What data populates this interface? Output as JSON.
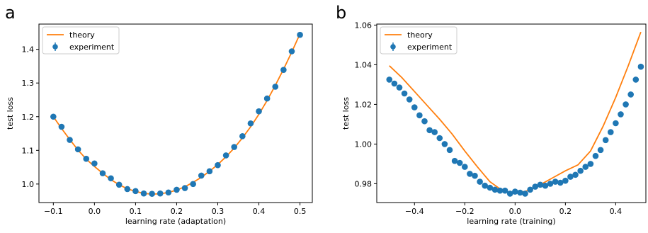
{
  "colors": {
    "theory": "#ff7f0e",
    "experiment": "#1f77b4",
    "axis": "#000000"
  },
  "chart_data": [
    {
      "panel_label": "a",
      "type": "line+scatter",
      "xlabel": "learning rate (adaptation)",
      "ylabel": "test loss",
      "xlim": [
        -0.135,
        0.53
      ],
      "ylim": [
        0.945,
        1.475
      ],
      "xticks": [
        -0.1,
        0.0,
        0.1,
        0.2,
        0.3,
        0.4,
        0.5
      ],
      "xtick_labels": [
        "−0.1",
        "0.0",
        "0.1",
        "0.2",
        "0.3",
        "0.4",
        "0.5"
      ],
      "yticks": [
        1.0,
        1.1,
        1.2,
        1.3,
        1.4
      ],
      "ytick_labels": [
        "1.0",
        "1.1",
        "1.2",
        "1.3",
        "1.4"
      ],
      "legend": {
        "placement": "top-left",
        "entries": [
          "theory",
          "experiment"
        ]
      },
      "series": [
        {
          "name": "theory",
          "kind": "line",
          "x": [
            -0.1,
            -0.08,
            -0.06,
            -0.04,
            -0.02,
            0.0,
            0.02,
            0.04,
            0.06,
            0.08,
            0.1,
            0.12,
            0.14,
            0.16,
            0.18,
            0.2,
            0.22,
            0.24,
            0.26,
            0.28,
            0.3,
            0.32,
            0.34,
            0.36,
            0.38,
            0.4,
            0.42,
            0.44,
            0.46,
            0.48,
            0.5
          ],
          "y": [
            1.2,
            1.165,
            1.132,
            1.101,
            1.074,
            1.052,
            1.032,
            1.013,
            0.998,
            0.986,
            0.978,
            0.972,
            0.97,
            0.971,
            0.975,
            0.982,
            0.992,
            1.005,
            1.02,
            1.038,
            1.058,
            1.081,
            1.107,
            1.137,
            1.17,
            1.207,
            1.248,
            1.293,
            1.341,
            1.392,
            1.446
          ]
        },
        {
          "name": "experiment",
          "kind": "scatter",
          "x": [
            -0.1,
            -0.08,
            -0.06,
            -0.04,
            -0.02,
            0.0,
            0.02,
            0.04,
            0.06,
            0.08,
            0.1,
            0.12,
            0.14,
            0.16,
            0.18,
            0.2,
            0.22,
            0.24,
            0.26,
            0.28,
            0.3,
            0.32,
            0.34,
            0.36,
            0.38,
            0.4,
            0.42,
            0.44,
            0.46,
            0.48,
            0.5
          ],
          "y": [
            1.2,
            1.17,
            1.131,
            1.103,
            1.075,
            1.061,
            1.032,
            1.017,
            0.998,
            0.985,
            0.979,
            0.972,
            0.971,
            0.972,
            0.975,
            0.983,
            0.988,
            1.0,
            1.025,
            1.038,
            1.056,
            1.085,
            1.11,
            1.142,
            1.18,
            1.216,
            1.254,
            1.289,
            1.339,
            1.394,
            1.443
          ]
        }
      ]
    },
    {
      "panel_label": "b",
      "type": "line+scatter",
      "xlabel": "learning rate (training)",
      "ylabel": "test loss",
      "xlim": [
        -0.55,
        0.52
      ],
      "ylim": [
        0.9705,
        1.0605
      ],
      "xticks": [
        -0.4,
        -0.2,
        0.0,
        0.2,
        0.4
      ],
      "xtick_labels": [
        "−0.4",
        "−0.2",
        "0.0",
        "0.2",
        "0.4"
      ],
      "yticks": [
        0.98,
        1.0,
        1.02,
        1.04,
        1.06
      ],
      "ytick_labels": [
        "0.98",
        "1.00",
        "1.02",
        "1.04",
        "1.06"
      ],
      "legend": {
        "placement": "top-left",
        "entries": [
          "theory",
          "experiment"
        ]
      },
      "series": [
        {
          "name": "theory",
          "kind": "line",
          "x": [
            -0.5,
            -0.45,
            -0.4,
            -0.35,
            -0.3,
            -0.25,
            -0.2,
            -0.15,
            -0.1,
            -0.05,
            0.0,
            0.05,
            0.1,
            0.15,
            0.2,
            0.25,
            0.3,
            0.35,
            0.4,
            0.45,
            0.5
          ],
          "y": [
            1.0395,
            1.0335,
            1.0265,
            1.0195,
            1.0125,
            1.005,
            0.9965,
            0.9885,
            0.981,
            0.9765,
            0.975,
            0.9765,
            0.9795,
            0.983,
            0.9865,
            0.9895,
            0.9965,
            1.009,
            1.0235,
            1.0395,
            1.0565
          ]
        },
        {
          "name": "experiment",
          "kind": "scatter",
          "x": [
            -0.5,
            -0.48,
            -0.46,
            -0.44,
            -0.42,
            -0.4,
            -0.38,
            -0.36,
            -0.34,
            -0.32,
            -0.3,
            -0.28,
            -0.26,
            -0.24,
            -0.22,
            -0.2,
            -0.18,
            -0.16,
            -0.14,
            -0.12,
            -0.1,
            -0.08,
            -0.06,
            -0.04,
            -0.02,
            0.0,
            0.02,
            0.04,
            0.06,
            0.08,
            0.1,
            0.12,
            0.14,
            0.16,
            0.18,
            0.2,
            0.22,
            0.24,
            0.26,
            0.28,
            0.3,
            0.32,
            0.34,
            0.36,
            0.38,
            0.4,
            0.42,
            0.44,
            0.46,
            0.48,
            0.5
          ],
          "y": [
            1.0325,
            1.0305,
            1.0285,
            1.0255,
            1.0225,
            1.0185,
            1.0145,
            1.0115,
            1.007,
            1.006,
            1.003,
            1.0,
            0.997,
            0.9915,
            0.9905,
            0.9885,
            0.985,
            0.984,
            0.981,
            0.979,
            0.978,
            0.977,
            0.9765,
            0.9765,
            0.975,
            0.976,
            0.9755,
            0.975,
            0.977,
            0.9785,
            0.9795,
            0.979,
            0.98,
            0.981,
            0.9805,
            0.9815,
            0.9835,
            0.9845,
            0.9865,
            0.9885,
            0.99,
            0.994,
            0.997,
            1.002,
            1.006,
            1.0105,
            1.015,
            1.02,
            1.025,
            1.0325,
            1.039
          ]
        }
      ]
    }
  ]
}
